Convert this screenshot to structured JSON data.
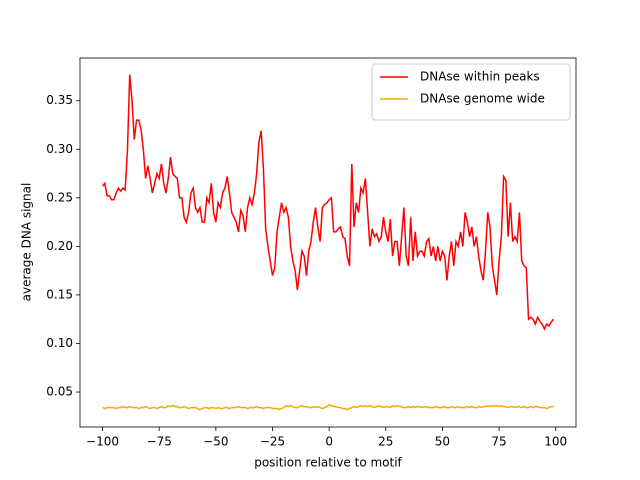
{
  "chart_data": {
    "type": "line",
    "xlabel": "position relative to motif",
    "ylabel": "average DNA signal",
    "x": [
      -100,
      -99,
      -98,
      -97,
      -96,
      -95,
      -94,
      -93,
      -92,
      -91,
      -90,
      -89,
      -88,
      -87,
      -86,
      -85,
      -84,
      -83,
      -82,
      -81,
      -80,
      -79,
      -78,
      -77,
      -76,
      -75,
      -74,
      -73,
      -72,
      -71,
      -70,
      -69,
      -68,
      -67,
      -66,
      -65,
      -64,
      -63,
      -62,
      -61,
      -60,
      -59,
      -58,
      -57,
      -56,
      -55,
      -54,
      -53,
      -52,
      -51,
      -50,
      -49,
      -48,
      -47,
      -46,
      -45,
      -44,
      -43,
      -42,
      -41,
      -40,
      -39,
      -38,
      -37,
      -36,
      -35,
      -34,
      -33,
      -32,
      -31,
      -30,
      -29,
      -28,
      -27,
      -26,
      -25,
      -24,
      -23,
      -22,
      -21,
      -20,
      -19,
      -18,
      -17,
      -16,
      -15,
      -14,
      -13,
      -12,
      -11,
      -10,
      -9,
      -8,
      -7,
      -6,
      -5,
      -4,
      -3,
      -2,
      -1,
      0,
      1,
      2,
      3,
      4,
      5,
      6,
      7,
      8,
      9,
      10,
      11,
      12,
      13,
      14,
      15,
      16,
      17,
      18,
      19,
      20,
      21,
      22,
      23,
      24,
      25,
      26,
      27,
      28,
      29,
      30,
      31,
      32,
      33,
      34,
      35,
      36,
      37,
      38,
      39,
      40,
      41,
      42,
      43,
      44,
      45,
      46,
      47,
      48,
      49,
      50,
      51,
      52,
      53,
      54,
      55,
      56,
      57,
      58,
      59,
      60,
      61,
      62,
      63,
      64,
      65,
      66,
      67,
      68,
      69,
      70,
      71,
      72,
      73,
      74,
      75,
      76,
      77,
      78,
      79,
      80,
      81,
      82,
      83,
      84,
      85,
      86,
      87,
      88,
      89,
      90,
      91,
      92,
      93,
      94,
      95,
      96,
      97,
      98,
      99
    ],
    "series": [
      {
        "name": "DNAse within peaks",
        "color": "#ff0000",
        "values": [
          0.262,
          0.265,
          0.252,
          0.252,
          0.248,
          0.248,
          0.255,
          0.26,
          0.257,
          0.26,
          0.258,
          0.3,
          0.377,
          0.35,
          0.31,
          0.33,
          0.33,
          0.32,
          0.3,
          0.27,
          0.283,
          0.27,
          0.255,
          0.265,
          0.275,
          0.27,
          0.285,
          0.265,
          0.255,
          0.27,
          0.292,
          0.275,
          0.272,
          0.27,
          0.25,
          0.25,
          0.23,
          0.225,
          0.235,
          0.255,
          0.26,
          0.24,
          0.235,
          0.24,
          0.225,
          0.225,
          0.25,
          0.245,
          0.265,
          0.235,
          0.225,
          0.245,
          0.24,
          0.255,
          0.26,
          0.272,
          0.255,
          0.235,
          0.23,
          0.225,
          0.215,
          0.237,
          0.232,
          0.215,
          0.24,
          0.25,
          0.243,
          0.255,
          0.275,
          0.307,
          0.319,
          0.28,
          0.218,
          0.2,
          0.185,
          0.17,
          0.178,
          0.215,
          0.23,
          0.245,
          0.235,
          0.24,
          0.23,
          0.2,
          0.185,
          0.175,
          0.155,
          0.175,
          0.195,
          0.19,
          0.17,
          0.195,
          0.205,
          0.225,
          0.24,
          0.22,
          0.205,
          0.24,
          0.243,
          0.245,
          0.248,
          0.25,
          0.215,
          0.215,
          0.218,
          0.22,
          0.21,
          0.208,
          0.19,
          0.18,
          0.285,
          0.22,
          0.245,
          0.235,
          0.26,
          0.255,
          0.27,
          0.235,
          0.2,
          0.218,
          0.21,
          0.213,
          0.205,
          0.21,
          0.23,
          0.215,
          0.205,
          0.228,
          0.19,
          0.205,
          0.205,
          0.18,
          0.21,
          0.24,
          0.19,
          0.18,
          0.23,
          0.185,
          0.215,
          0.19,
          0.195,
          0.195,
          0.19,
          0.205,
          0.208,
          0.19,
          0.2,
          0.185,
          0.2,
          0.185,
          0.195,
          0.19,
          0.165,
          0.19,
          0.205,
          0.18,
          0.205,
          0.2,
          0.215,
          0.2,
          0.235,
          0.225,
          0.21,
          0.22,
          0.2,
          0.21,
          0.19,
          0.175,
          0.165,
          0.195,
          0.235,
          0.22,
          0.18,
          0.165,
          0.15,
          0.185,
          0.21,
          0.272,
          0.268,
          0.21,
          0.245,
          0.205,
          0.21,
          0.205,
          0.235,
          0.185,
          0.18,
          0.178,
          0.125,
          0.127,
          0.125,
          0.12,
          0.127,
          0.123,
          0.12,
          0.115,
          0.12,
          0.118,
          0.122,
          0.125
        ]
      },
      {
        "name": "DNAse genome wide",
        "color": "#ffa500",
        "values": [
          0.034,
          0.033,
          0.034,
          0.034,
          0.034,
          0.034,
          0.033,
          0.034,
          0.034,
          0.035,
          0.034,
          0.034,
          0.035,
          0.034,
          0.034,
          0.034,
          0.033,
          0.034,
          0.034,
          0.035,
          0.034,
          0.033,
          0.034,
          0.034,
          0.033,
          0.034,
          0.035,
          0.034,
          0.034,
          0.036,
          0.035,
          0.036,
          0.035,
          0.035,
          0.034,
          0.034,
          0.035,
          0.034,
          0.033,
          0.034,
          0.034,
          0.034,
          0.033,
          0.032,
          0.033,
          0.034,
          0.034,
          0.033,
          0.034,
          0.034,
          0.033,
          0.034,
          0.033,
          0.033,
          0.034,
          0.034,
          0.033,
          0.034,
          0.034,
          0.034,
          0.035,
          0.034,
          0.034,
          0.034,
          0.033,
          0.034,
          0.034,
          0.034,
          0.035,
          0.034,
          0.034,
          0.033,
          0.034,
          0.034,
          0.034,
          0.033,
          0.033,
          0.033,
          0.032,
          0.033,
          0.034,
          0.036,
          0.035,
          0.036,
          0.035,
          0.034,
          0.034,
          0.035,
          0.036,
          0.035,
          0.035,
          0.034,
          0.034,
          0.035,
          0.034,
          0.035,
          0.034,
          0.033,
          0.034,
          0.035,
          0.037,
          0.036,
          0.035,
          0.035,
          0.034,
          0.034,
          0.033,
          0.033,
          0.032,
          0.033,
          0.034,
          0.035,
          0.034,
          0.035,
          0.036,
          0.035,
          0.036,
          0.035,
          0.036,
          0.035,
          0.034,
          0.035,
          0.036,
          0.035,
          0.034,
          0.035,
          0.035,
          0.034,
          0.036,
          0.035,
          0.036,
          0.035,
          0.035,
          0.034,
          0.034,
          0.035,
          0.034,
          0.035,
          0.034,
          0.035,
          0.035,
          0.034,
          0.035,
          0.035,
          0.034,
          0.034,
          0.034,
          0.035,
          0.034,
          0.034,
          0.034,
          0.035,
          0.034,
          0.034,
          0.035,
          0.034,
          0.034,
          0.035,
          0.034,
          0.034,
          0.034,
          0.035,
          0.034,
          0.035,
          0.034,
          0.034,
          0.035,
          0.034,
          0.035,
          0.035,
          0.036,
          0.035,
          0.036,
          0.035,
          0.036,
          0.035,
          0.036,
          0.035,
          0.035,
          0.034,
          0.035,
          0.035,
          0.034,
          0.035,
          0.035,
          0.034,
          0.035,
          0.034,
          0.034,
          0.035,
          0.034,
          0.035,
          0.035,
          0.034,
          0.034,
          0.034,
          0.033,
          0.034,
          0.035,
          0.035
        ]
      }
    ],
    "xlim": [
      -109.95,
      108.95
    ],
    "xticks": [
      {
        "value": -100,
        "label": "−100"
      },
      {
        "value": -75,
        "label": "−75"
      },
      {
        "value": -50,
        "label": "−50"
      },
      {
        "value": -25,
        "label": "−25"
      },
      0,
      25,
      50,
      75,
      100
    ],
    "ylim": [
      0.014,
      0.394
    ],
    "yticks": [
      0.05,
      {
        "value": 0.1,
        "label": "0.10"
      },
      0.15,
      {
        "value": 0.2,
        "label": "0.20"
      },
      0.25,
      {
        "value": 0.3,
        "label": "0.30"
      },
      0.35
    ],
    "legend": "upper right"
  }
}
